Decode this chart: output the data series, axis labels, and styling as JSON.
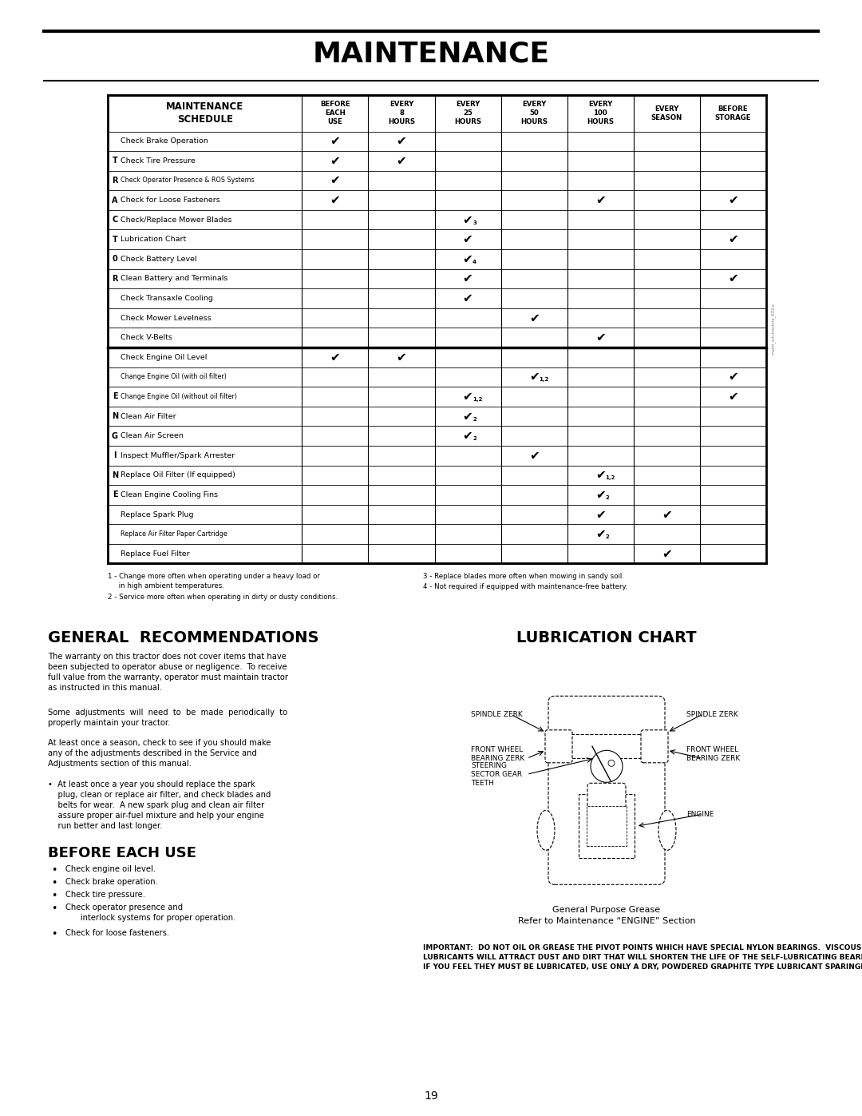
{
  "title": "MAINTENANCE",
  "page_number": "19",
  "tractor_rows": [
    {
      "label": "Check Brake Operation",
      "side_letter": "",
      "checks": [
        1,
        1,
        0,
        0,
        0,
        0,
        0
      ]
    },
    {
      "label": "Check Tire Pressure",
      "side_letter": "T",
      "checks": [
        1,
        1,
        0,
        0,
        0,
        0,
        0
      ]
    },
    {
      "label": "Check Operator Presence & ROS Systems",
      "side_letter": "R",
      "checks": [
        1,
        0,
        0,
        0,
        0,
        0,
        0
      ]
    },
    {
      "label": "Check for Loose Fasteners",
      "side_letter": "A",
      "checks": [
        1,
        0,
        0,
        0,
        1,
        0,
        1
      ]
    },
    {
      "label": "Check/Replace Mower Blades",
      "side_letter": "C",
      "checks": [
        0,
        0,
        "3",
        0,
        0,
        0,
        0
      ]
    },
    {
      "label": "Lubrication Chart",
      "side_letter": "T",
      "checks": [
        0,
        0,
        1,
        0,
        0,
        0,
        1
      ]
    },
    {
      "label": "Check Battery Level",
      "side_letter": "0",
      "checks": [
        0,
        0,
        "4",
        0,
        0,
        0,
        0
      ]
    },
    {
      "label": "Clean Battery and Terminals",
      "side_letter": "R",
      "checks": [
        0,
        0,
        1,
        0,
        0,
        0,
        1
      ]
    },
    {
      "label": "Check Transaxle Cooling",
      "side_letter": "",
      "checks": [
        0,
        0,
        1,
        0,
        0,
        0,
        0
      ]
    },
    {
      "label": "Check Mower Levelness",
      "side_letter": "",
      "checks": [
        0,
        0,
        0,
        1,
        0,
        0,
        0
      ]
    },
    {
      "label": "Check V-Belts",
      "side_letter": "",
      "checks": [
        0,
        0,
        0,
        0,
        1,
        0,
        0
      ]
    }
  ],
  "engine_rows": [
    {
      "label": "Check Engine Oil Level",
      "side_letter": "",
      "checks": [
        1,
        1,
        0,
        0,
        0,
        0,
        0
      ]
    },
    {
      "label": "Change Engine Oil (with oil filter)",
      "side_letter": "",
      "checks": [
        0,
        0,
        0,
        "1,2",
        0,
        0,
        1
      ]
    },
    {
      "label": "Change Engine Oil (without oil filter)",
      "side_letter": "E",
      "checks": [
        0,
        0,
        "1,2",
        0,
        0,
        0,
        1
      ]
    },
    {
      "label": "Clean Air Filter",
      "side_letter": "N",
      "checks": [
        0,
        0,
        "2",
        0,
        0,
        0,
        0
      ]
    },
    {
      "label": "Clean Air Screen",
      "side_letter": "G",
      "checks": [
        0,
        0,
        "2",
        0,
        0,
        0,
        0
      ]
    },
    {
      "label": "Inspect Muffler/Spark Arrester",
      "side_letter": "I",
      "checks": [
        0,
        0,
        0,
        1,
        0,
        0,
        0
      ]
    },
    {
      "label": "Replace Oil Filter (If equipped)",
      "side_letter": "N",
      "checks": [
        0,
        0,
        0,
        0,
        "1,2",
        0,
        0
      ]
    },
    {
      "label": "Clean Engine Cooling Fins",
      "side_letter": "E",
      "checks": [
        0,
        0,
        0,
        0,
        "2",
        0,
        0
      ]
    },
    {
      "label": "Replace Spark Plug",
      "side_letter": "",
      "checks": [
        0,
        0,
        0,
        0,
        1,
        1,
        0
      ]
    },
    {
      "label": "Replace Air Filter Paper Cartridge",
      "side_letter": "",
      "checks": [
        0,
        0,
        0,
        0,
        "2",
        0,
        0
      ]
    },
    {
      "label": "Replace Fuel Filter",
      "side_letter": "",
      "checks": [
        0,
        0,
        0,
        0,
        0,
        1,
        0
      ]
    }
  ],
  "col_headers": [
    "BEFORE\nEACH\nUSE",
    "EVERY\n8\nHOURS",
    "EVERY\n25\nHOURS",
    "EVERY\n50\nHOURS",
    "EVERY\n100\nHOURS",
    "EVERY\nSEASON",
    "BEFORE\nSTORAGE"
  ],
  "footnote1": "1 - Change more often when operating under a heavy load or\n     in high ambient temperatures.",
  "footnote2": "2 - Service more often when operating in dirty or dusty conditions.",
  "footnote3": "3 - Replace blades more often when mowing in sandy soil.",
  "footnote4": "4 - Not required if equipped with maintenance-free battery.",
  "general_recs_title": "GENERAL  RECOMMENDATIONS",
  "gr_para1": "The warranty on this tractor does not cover items that have\nbeen subjected to operator abuse or negligence.  To receive\nfull value from the warranty, operator must maintain tractor\nas instructed in this manual.",
  "gr_para2": "Some  adjustments  will  need  to  be  made  periodically  to\nproperly maintain your tractor.",
  "gr_para3": "At least once a season, check to see if you should make\nany of the adjustments described in the Service and\nAdjustments section of this manual.",
  "gr_bullet": "•  At least once a year you should replace the spark\n    plug, clean or replace air filter, and check blades and\n    belts for wear.  A new spark plug and clean air filter\n    assure proper air-fuel mixture and help your engine\n    run better and last longer.",
  "beu_title": "BEFORE EACH USE",
  "beu_items": [
    "Check engine oil level.",
    "Check brake operation.",
    "Check tire pressure.",
    "Check operator presence and\n      interlock systems for proper operation.",
    "Check for loose fasteners."
  ],
  "lub_title": "LUBRICATION CHART",
  "lub_caption": "General Purpose Grease\nRefer to Maintenance “ENGINE” Section",
  "important": "IMPORTANT:  DO NOT OIL OR GREASE THE PIVOT POINTS WHICH HAVE SPECIAL NYLON BEARINGS.  VISCOUS\nLUBRICANTS WILL ATTRACT DUST AND DIRT THAT WILL SHORTEN THE LIFE OF THE SELF-LUBRICATING BEARINGS.\nIF YOU FEEL THEY MUST BE LUBRICATED, USE ONLY A DRY, POWDERED GRAPHITE TYPE LUBRICANT SPARINGLY."
}
